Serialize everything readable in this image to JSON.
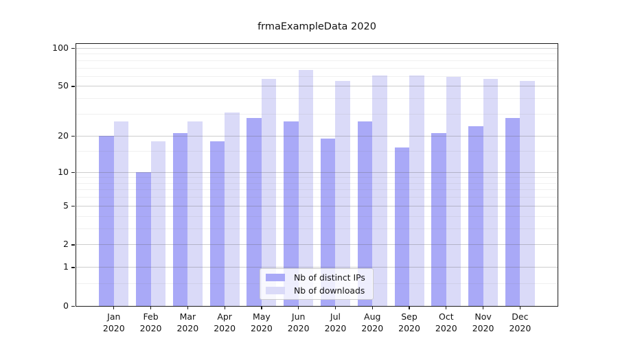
{
  "chart_data": {
    "type": "bar",
    "title": "frmaExampleData 2020",
    "categories": [
      "Jan 2020",
      "Feb 2020",
      "Mar 2020",
      "Apr 2020",
      "May 2020",
      "Jun 2020",
      "Jul 2020",
      "Aug 2020",
      "Sep 2020",
      "Oct 2020",
      "Nov 2020",
      "Dec 2020"
    ],
    "series": [
      {
        "name": "Nb of distinct IPs",
        "color": "#a9a9f7",
        "values": [
          20,
          10,
          21,
          18,
          28,
          26,
          19,
          26,
          16,
          21,
          24,
          28
        ]
      },
      {
        "name": "Nb of downloads",
        "color": "#dadaf8",
        "values": [
          26,
          18,
          26,
          31,
          57,
          67,
          55,
          61,
          61,
          59,
          57,
          55
        ]
      }
    ],
    "y_scale": "log1p",
    "y_ticks": [
      0,
      1,
      2,
      5,
      10,
      20,
      50,
      100
    ],
    "y_minor_gridlines": [
      0.5,
      3,
      4,
      6,
      7,
      8,
      9,
      15,
      30,
      40,
      60,
      70,
      80,
      90
    ],
    "ylim": [
      0,
      110
    ],
    "xlabel": "",
    "ylabel": "",
    "grid": "horizontal",
    "legend_position": "inside-bottom-center"
  }
}
